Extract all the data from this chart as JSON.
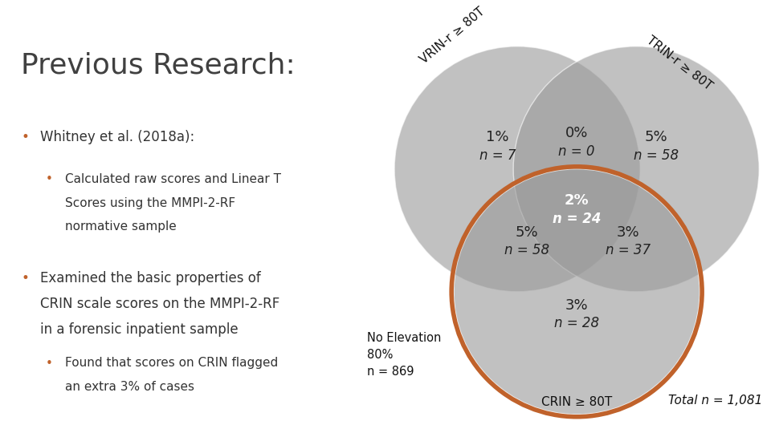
{
  "title": "Previous Research:",
  "title_color": "#404040",
  "title_fontsize": 26,
  "background_color": "#ffffff",
  "bullet_color": "#C0622B",
  "bullet1_main": "Whitney et al. (2018a):",
  "bullet1_sub1": "Calculated raw scores and Linear T",
  "bullet1_sub2": "Scores using the MMPI-2-RF",
  "bullet1_sub3": "normative sample",
  "bullet2_main1": "Examined the basic properties of",
  "bullet2_main2": "CRIN scale scores on the MMPI-2-RF",
  "bullet2_main3": "in a forensic inpatient sample",
  "bullet2_sub1": "Found that scores on CRIN flagged",
  "bullet2_sub2": "an extra 3% of cases",
  "venn_bg": "#dcdcdc",
  "circle_color": "#999999",
  "circle_alpha": 0.6,
  "highlight_circle_color": "#C0622B",
  "highlight_circle_lw": 4.0,
  "label_vrin": "VRIN-r ≥ 80T",
  "label_trin": "TRIN-r ≥ 80T",
  "label_crin": "CRIN ≥ 80T",
  "no_elevation": "No Elevation\n80%\nn = 869",
  "total": "Total n = 1,081",
  "text_color": "#333333"
}
